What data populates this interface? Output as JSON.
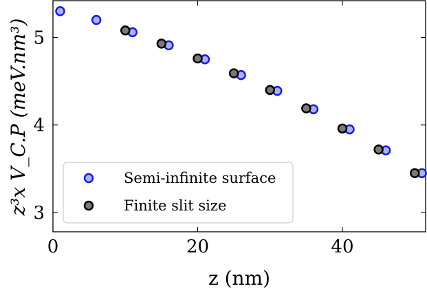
{
  "chart_data": {
    "type": "scatter",
    "xlabel": "z (nm)",
    "ylabel": "z³x V_C.P (meV.nm³)",
    "xlim": [
      0,
      51.5
    ],
    "ylim": [
      2.78,
      5.42
    ],
    "xticks": [
      0,
      20,
      40
    ],
    "yticks": [
      3,
      4,
      5
    ],
    "xtick_labels": [
      "0",
      "20",
      "40"
    ],
    "ytick_labels": [
      "3",
      "4",
      "5"
    ],
    "legend_position": "lower-left",
    "grid": false,
    "series": [
      {
        "name": "Semi-infinite surface",
        "face_color": "#a9b4e8",
        "edge_color": "#1a1adc",
        "points": [
          {
            "x": 1,
            "y": 5.3
          },
          {
            "x": 6,
            "y": 5.2
          },
          {
            "x": 11,
            "y": 5.06
          },
          {
            "x": 16,
            "y": 4.91
          },
          {
            "x": 21,
            "y": 4.75
          },
          {
            "x": 26,
            "y": 4.57
          },
          {
            "x": 31,
            "y": 4.39
          },
          {
            "x": 36,
            "y": 4.18
          },
          {
            "x": 41,
            "y": 3.95
          },
          {
            "x": 46,
            "y": 3.71
          },
          {
            "x": 51,
            "y": 3.45
          }
        ]
      },
      {
        "name": "Finite slit size",
        "face_color": "#7a7a7a",
        "edge_color": "#000000",
        "points": [
          {
            "x": 10,
            "y": 5.08
          },
          {
            "x": 15,
            "y": 4.93
          },
          {
            "x": 20,
            "y": 4.76
          },
          {
            "x": 25,
            "y": 4.59
          },
          {
            "x": 30,
            "y": 4.4
          },
          {
            "x": 35,
            "y": 4.19
          },
          {
            "x": 40,
            "y": 3.96
          },
          {
            "x": 45,
            "y": 3.72
          },
          {
            "x": 50,
            "y": 3.45
          }
        ]
      }
    ]
  }
}
